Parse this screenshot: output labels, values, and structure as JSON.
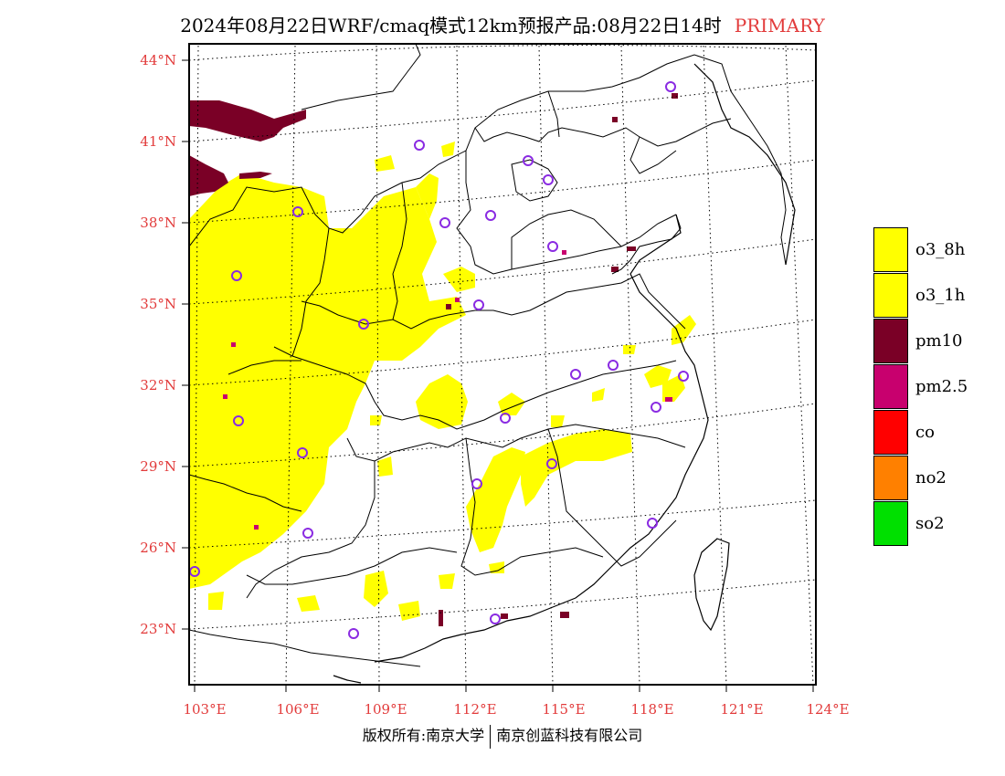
{
  "header": {
    "title": "2024年08月22日WRF/cmaq模式12km预报产品:08月22日14时",
    "tag": "PRIMARY"
  },
  "map": {
    "lat_labels": [
      "44°N",
      "41°N",
      "38°N",
      "35°N",
      "32°N",
      "29°N",
      "26°N",
      "23°N"
    ],
    "lon_labels": [
      "103°E",
      "106°E",
      "109°E",
      "112°E",
      "115°E",
      "118°E",
      "121°E",
      "124°E"
    ],
    "colors": {
      "o3_8h": "#ffff00",
      "pm10": "#7a0026",
      "pm25": "#c8006e",
      "station_marker": "#8a2be2"
    }
  },
  "legend": [
    {
      "label": "o3_8h",
      "color": "#ffff00"
    },
    {
      "label": "o3_1h",
      "color": "#ffff00"
    },
    {
      "label": "pm10",
      "color": "#7a0026"
    },
    {
      "label": "pm2.5",
      "color": "#c8006e"
    },
    {
      "label": "co",
      "color": "#ff0000"
    },
    {
      "label": "no2",
      "color": "#ff8000"
    },
    {
      "label": "so2",
      "color": "#00e000"
    }
  ],
  "footer": {
    "left": "版权所有:南京大学",
    "right": "南京创蓝科技有限公司"
  }
}
